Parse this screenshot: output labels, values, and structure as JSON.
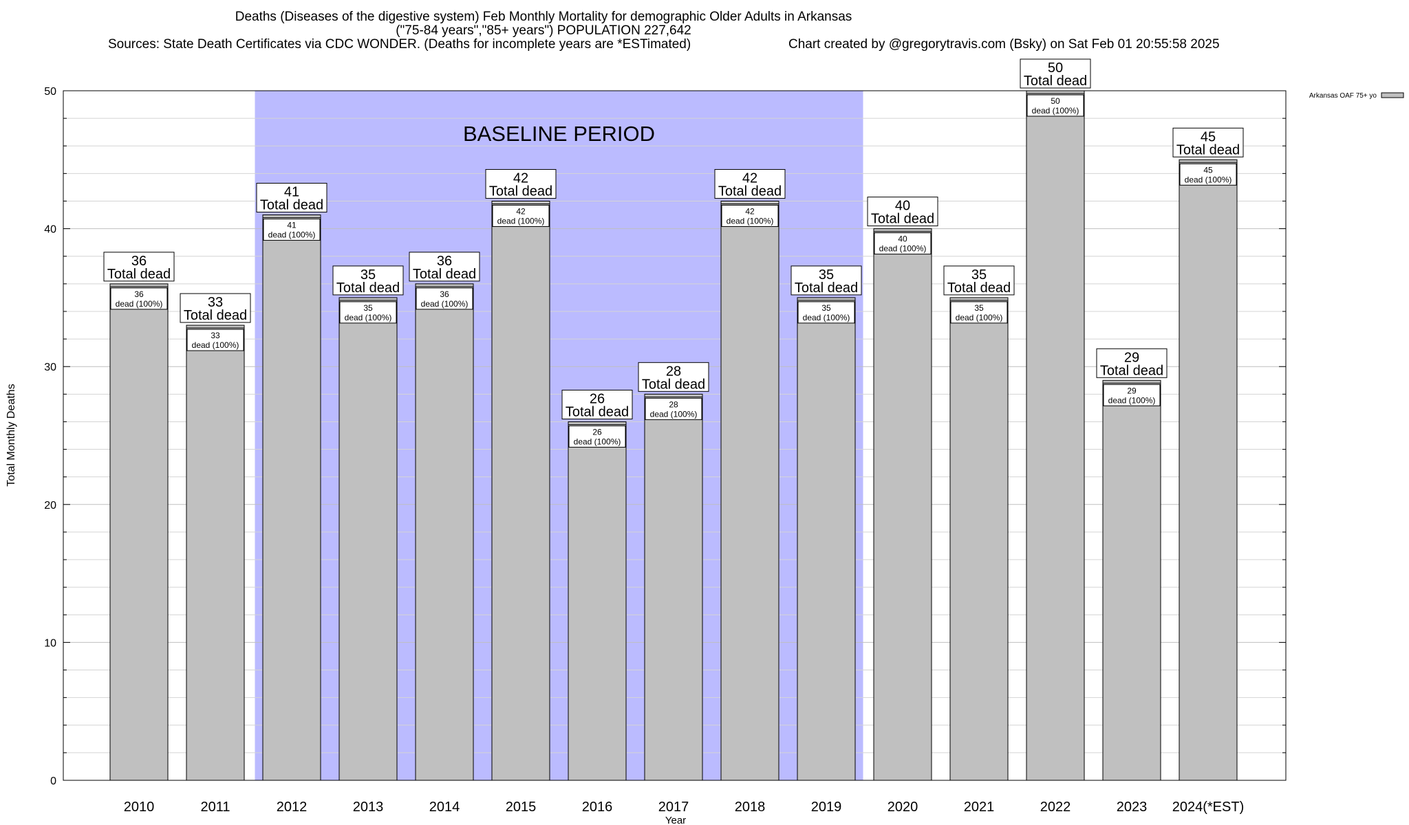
{
  "chart_data": {
    "type": "bar",
    "title": "Deaths (Diseases of the digestive system) Feb Monthly Mortality for demographic Older Adults in Arkansas",
    "subtitle": "(\"75-84 years\",\"85+ years\") POPULATION 227,642",
    "sources": "Sources: State Death Certificates via CDC WONDER. (Deaths for incomplete years are *ESTimated)",
    "credit": "Chart created by @gregorytravis.com (Bsky) on Sat Feb 01 20:55:58 2025",
    "xlabel": "Year",
    "ylabel": "Total Monthly Deaths",
    "ylim": [
      0,
      50
    ],
    "yticks": [
      0,
      10,
      20,
      30,
      40,
      50
    ],
    "grid": true,
    "legend_position": "top-right",
    "categories": [
      "2010",
      "2011",
      "2012",
      "2013",
      "2014",
      "2015",
      "2016",
      "2017",
      "2018",
      "2019",
      "2020",
      "2021",
      "2022",
      "2023",
      "2024(*EST)"
    ],
    "series": [
      {
        "name": "Arkansas OAF 75+ yo",
        "color": "#c0c0c0",
        "values": [
          36,
          33,
          41,
          35,
          36,
          42,
          26,
          28,
          42,
          35,
          40,
          35,
          50,
          29,
          45
        ]
      }
    ],
    "total_label_text": "Total dead",
    "inner_label_text": "dead (100%)",
    "baseline": {
      "label": "BASELINE PERIOD",
      "start": "2012",
      "end": "2019",
      "color": "#bbbbff"
    }
  }
}
